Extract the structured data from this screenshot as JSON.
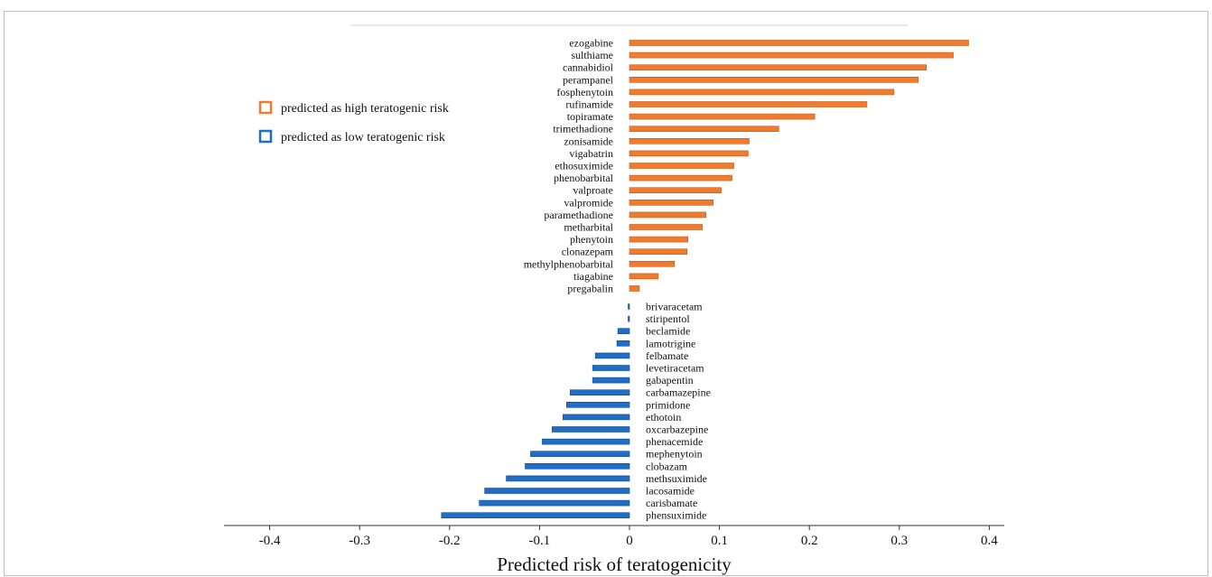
{
  "chart_data": {
    "type": "bar",
    "orientation": "horizontal",
    "xlabel": "Predicted risk of teratogenicity",
    "xlim": [
      -0.4,
      0.4
    ],
    "xticks": [
      -0.4,
      -0.3,
      -0.2,
      -0.1,
      0,
      0.1,
      0.2,
      0.3,
      0.4
    ],
    "xtick_labels": [
      "-0.4",
      "-0.3",
      "-0.2",
      "-0.1",
      "0",
      "0.1",
      "0.2",
      "0.3",
      "0.4"
    ],
    "grid": false,
    "legend_position": "left",
    "series": [
      {
        "name": "predicted as high teratogenic risk",
        "color": "#f07b2e",
        "categories": [
          "ezogabine",
          "sulthiame",
          "cannabidiol",
          "perampanel",
          "fosphenytoin",
          "rufinamide",
          "topiramate",
          "trimethadione",
          "zonisamide",
          "vigabatrin",
          "ethosuximide",
          "phenobarbital",
          "valproate",
          "valpromide",
          "paramethadione",
          "metharbital",
          "phenytoin",
          "clonazepam",
          "methylphenobarbital",
          "tiagabine",
          "pregabalin"
        ],
        "values": [
          0.377,
          0.36,
          0.33,
          0.321,
          0.294,
          0.264,
          0.206,
          0.166,
          0.133,
          0.132,
          0.116,
          0.114,
          0.102,
          0.093,
          0.085,
          0.081,
          0.065,
          0.064,
          0.05,
          0.032,
          0.011
        ]
      },
      {
        "name": "predicted as low teratogenic risk",
        "color": "#1f6dc4",
        "categories": [
          "brivaracetam",
          "stiripentol",
          "beclamide",
          "lamotrigine",
          "felbamate",
          "levetiracetam",
          "gabapentin",
          "carbamazepine",
          "primidone",
          "ethotoin",
          "oxcarbazepine",
          "phenacemide",
          "mephenytoin",
          "clobazam",
          "methsuximide",
          "lacosamide",
          "carisbamate",
          "phensuximide"
        ],
        "values": [
          -0.001,
          -0.001,
          -0.013,
          -0.014,
          -0.038,
          -0.041,
          -0.041,
          -0.066,
          -0.07,
          -0.074,
          -0.086,
          -0.097,
          -0.11,
          -0.116,
          -0.137,
          -0.161,
          -0.167,
          -0.209
        ]
      }
    ]
  }
}
